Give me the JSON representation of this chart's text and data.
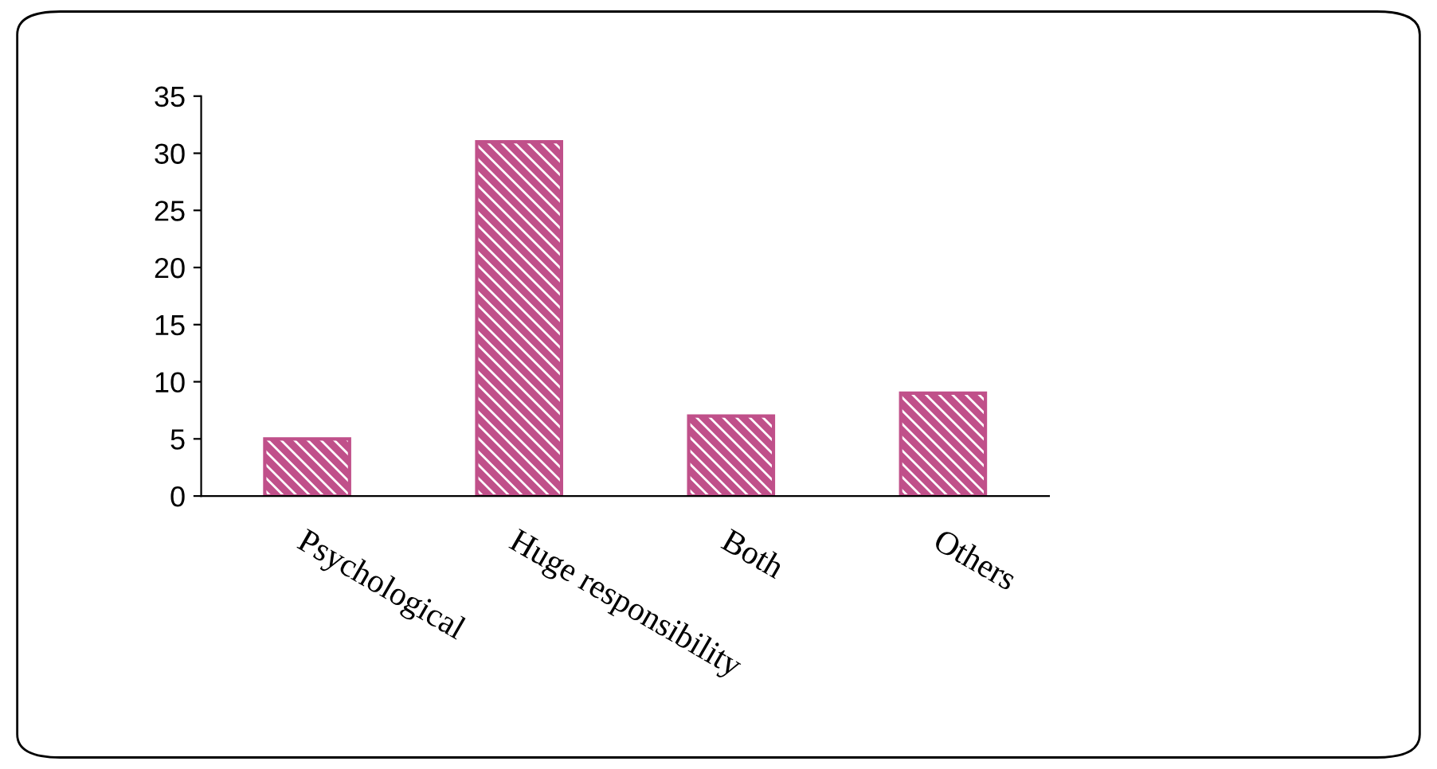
{
  "chart_data": {
    "type": "bar",
    "categories": [
      "Psychological",
      "Huge responsibility",
      "Both",
      "Others"
    ],
    "values": [
      5,
      31,
      7,
      9
    ],
    "color": "#c0508a",
    "ylim": [
      0,
      35
    ],
    "yticks": [
      0,
      5,
      10,
      15,
      20,
      25,
      30,
      35
    ],
    "grid": false,
    "legend": false
  }
}
